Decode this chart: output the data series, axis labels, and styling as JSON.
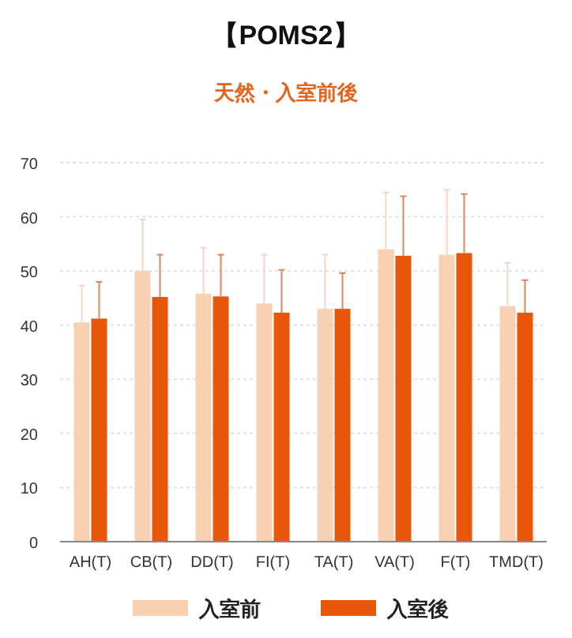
{
  "chart_data": {
    "type": "bar",
    "title": "【POMS2】",
    "subtitle": "天然・入室前後",
    "categories": [
      "AH(T)",
      "CB(T)",
      "DD(T)",
      "FI(T)",
      "TA(T)",
      "VA(T)",
      "F(T)",
      "TMD(T)"
    ],
    "series": [
      {
        "name": "入室前",
        "color": "#f8d1b2",
        "values": [
          40.5,
          50,
          45.8,
          44,
          43,
          54,
          53,
          43.5
        ],
        "errors": [
          [
            40.5,
            47.3
          ],
          [
            50,
            59.5
          ],
          [
            45.8,
            54.3
          ],
          [
            44,
            53
          ],
          [
            43,
            53
          ],
          [
            54,
            64.5
          ],
          [
            53,
            65
          ],
          [
            43.5,
            51.5
          ]
        ]
      },
      {
        "name": "入室後",
        "color": "#e8560a",
        "values": [
          41.2,
          45.2,
          45.3,
          42.3,
          43,
          52.8,
          53.3,
          42.3
        ],
        "errors": [
          [
            41.2,
            48
          ],
          [
            45.2,
            53
          ],
          [
            45.3,
            53
          ],
          [
            42.3,
            50.2
          ],
          [
            43,
            49.6
          ],
          [
            52.8,
            63.8
          ],
          [
            53.3,
            64.2
          ],
          [
            42.3,
            48.3
          ]
        ]
      }
    ],
    "ylim": [
      0,
      70
    ],
    "yticks": [
      0,
      10,
      20,
      30,
      40,
      50,
      60,
      70
    ],
    "grid": "y",
    "legend": "bottom"
  }
}
